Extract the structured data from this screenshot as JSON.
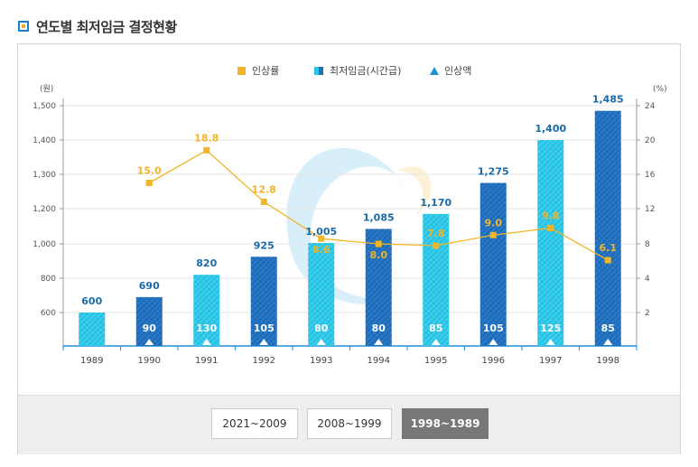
{
  "page_title": "연도별 최저임금 결정현황",
  "buttons": [
    {
      "label": "2021~2009",
      "active": false
    },
    {
      "label": "2008~1999",
      "active": false
    },
    {
      "label": "1998~1989",
      "active": true
    }
  ],
  "chart_data": {
    "type": "bar",
    "categories": [
      "1989",
      "1990",
      "1991",
      "1992",
      "1993",
      "1994",
      "1995",
      "1996",
      "1997",
      "1998"
    ],
    "legend": [
      "인상률",
      "최저임금(시간급)",
      "인상액"
    ],
    "legend_position": "top-center",
    "left_unit": "(원)",
    "right_unit": "(%)",
    "left_ticks": [
      "600",
      "800",
      "1,000",
      "1,200",
      "1,300",
      "1,400",
      "1,500"
    ],
    "right_ticks": [
      "2",
      "4",
      "8",
      "12",
      "16",
      "20",
      "24"
    ],
    "wage": {
      "name": "최저임금(시간급)",
      "values": [
        600,
        690,
        820,
        925,
        1005,
        1085,
        1170,
        1275,
        1400,
        1485
      ],
      "labels": [
        "600",
        "690",
        "820",
        "925",
        "1,005",
        "1,085",
        "1,170",
        "1,275",
        "1,400",
        "1,485"
      ]
    },
    "increase_amount": {
      "name": "인상액",
      "values": [
        null,
        90,
        130,
        105,
        80,
        80,
        85,
        105,
        125,
        85
      ],
      "labels": [
        "",
        "90",
        "130",
        "105",
        "80",
        "80",
        "85",
        "105",
        "125",
        "85"
      ]
    },
    "increase_rate": {
      "name": "인상률",
      "values": [
        null,
        15.0,
        18.8,
        12.8,
        8.6,
        8.0,
        7.8,
        9.0,
        9.8,
        6.1
      ],
      "labels": [
        "",
        "15.0",
        "18.8",
        "12.8",
        "8.6",
        "8.0",
        "7.8",
        "9.0",
        "9.8",
        "6.1"
      ]
    },
    "colors": {
      "light_bar": "#29c6e8",
      "dark_bar": "#1f6fbf",
      "rate_line": "#f0b529",
      "axis": "#999999",
      "grid": "#e6e6e6"
    }
  }
}
